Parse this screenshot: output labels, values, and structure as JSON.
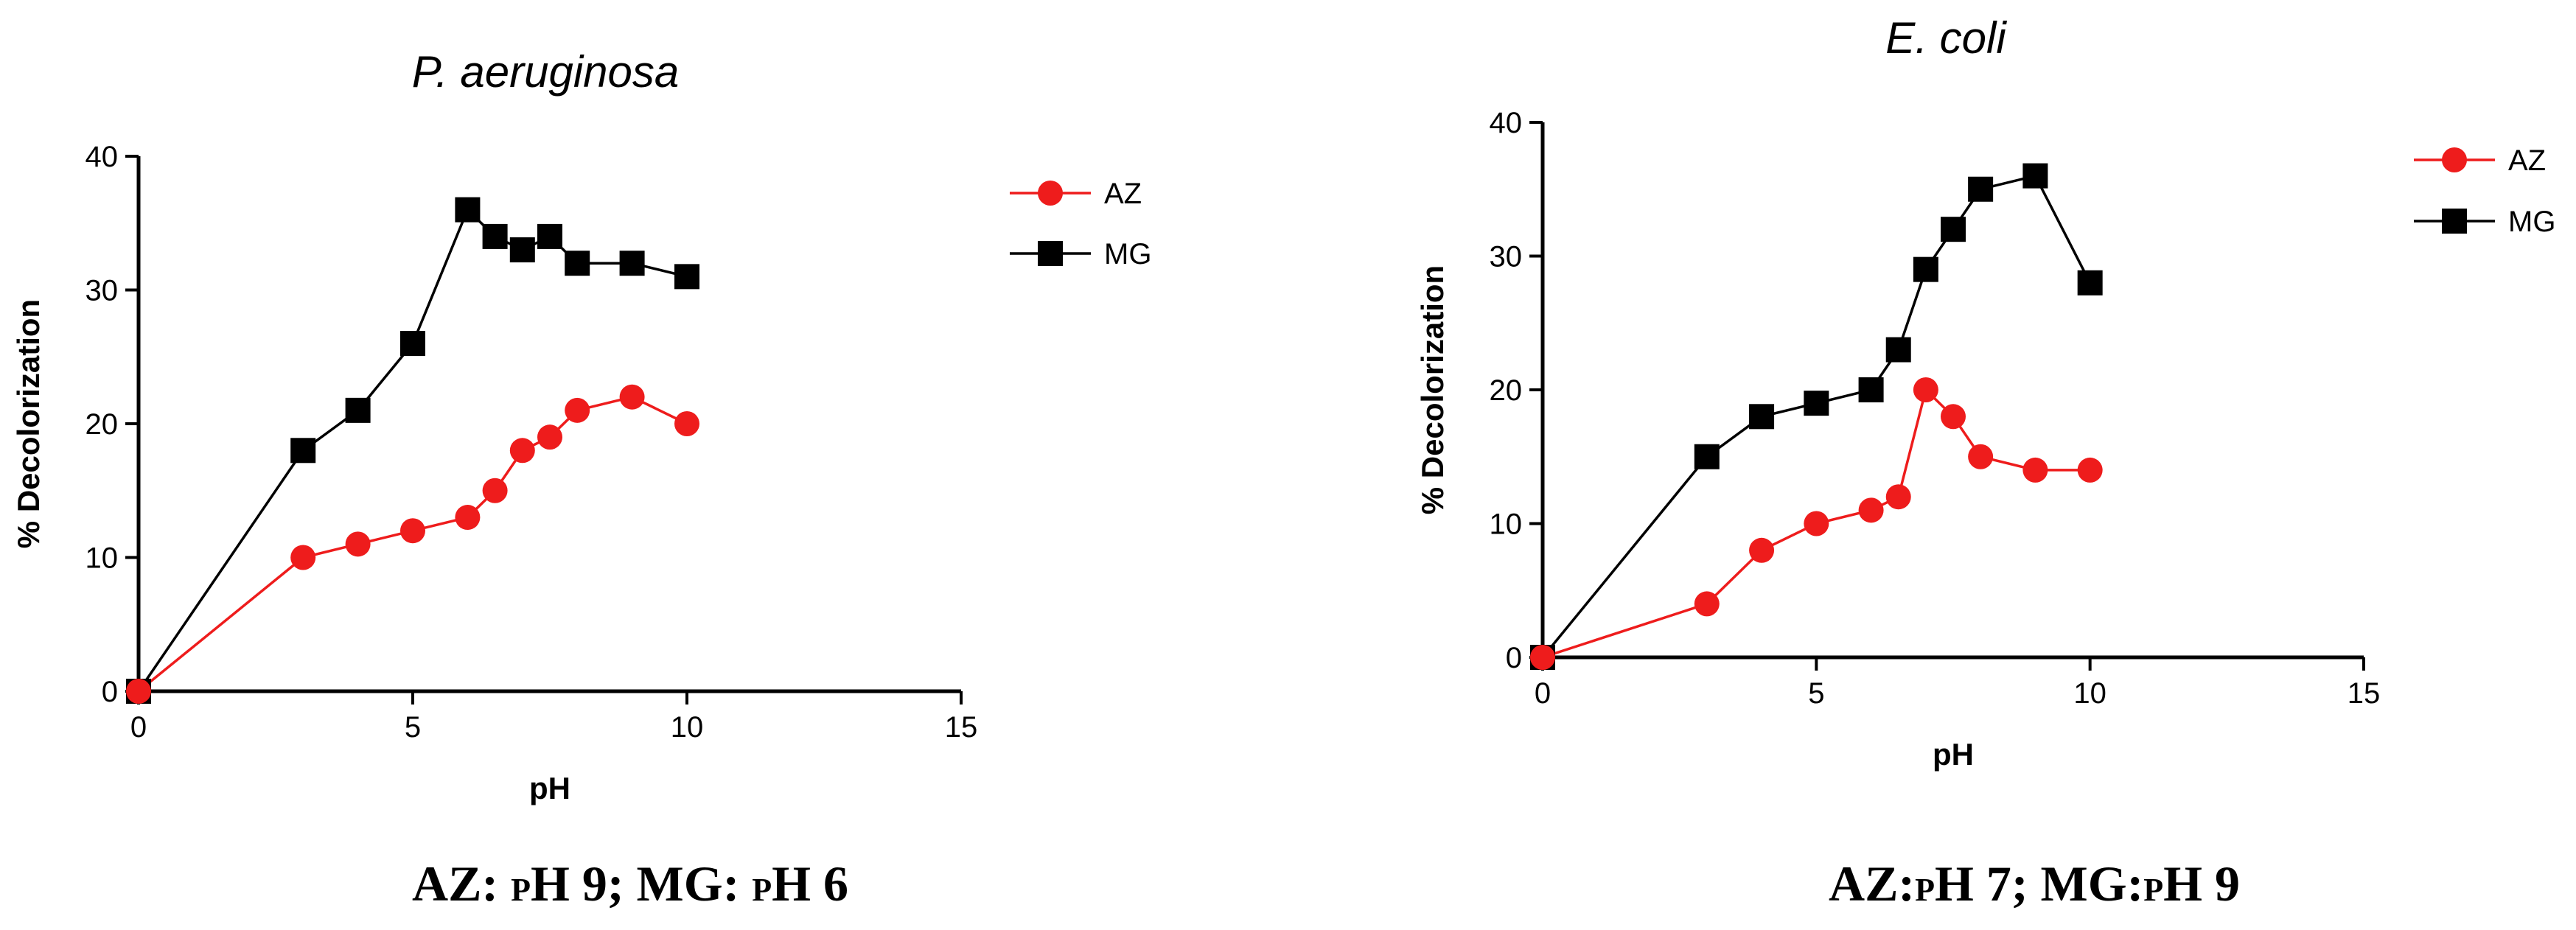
{
  "colors": {
    "az": "#ee1c1c",
    "mg": "#000000",
    "axis": "#000000",
    "background": "#ffffff"
  },
  "chart_data": [
    {
      "type": "line",
      "title": "P. aeruginosa",
      "xlabel": "pH",
      "ylabel": "% Decolorization",
      "xlim": [
        0,
        15
      ],
      "ylim": [
        0,
        40
      ],
      "xticks": [
        0,
        5,
        10,
        15
      ],
      "yticks": [
        0,
        10,
        20,
        30,
        40
      ],
      "legend_position": "right",
      "series": [
        {
          "name": "AZ",
          "marker": "circle",
          "color": "#ee1c1c",
          "x": [
            0,
            3,
            4,
            5,
            6,
            6.5,
            7,
            7.5,
            8,
            9,
            10
          ],
          "values": [
            0,
            10,
            11,
            12,
            13,
            15,
            18,
            19,
            21,
            22,
            20
          ]
        },
        {
          "name": "MG",
          "marker": "square",
          "color": "#000000",
          "x": [
            0,
            3,
            4,
            5,
            6,
            6.5,
            7,
            7.5,
            8,
            9,
            10
          ],
          "values": [
            0,
            18,
            21,
            26,
            36,
            34,
            33,
            34,
            32,
            32,
            31
          ]
        }
      ],
      "caption": {
        "parts": [
          "AZ: ",
          "P",
          "H 9; MG: ",
          "P",
          "H 6"
        ]
      }
    },
    {
      "type": "line",
      "title": "E. coli",
      "xlabel": "pH",
      "ylabel": "% Decolorization",
      "xlim": [
        0,
        15
      ],
      "ylim": [
        0,
        40
      ],
      "xticks": [
        0,
        5,
        10,
        15
      ],
      "yticks": [
        0,
        10,
        20,
        30,
        40
      ],
      "legend_position": "right",
      "series": [
        {
          "name": "AZ",
          "marker": "circle",
          "color": "#ee1c1c",
          "x": [
            0,
            3,
            4,
            5,
            6,
            6.5,
            7,
            7.5,
            8,
            9,
            10
          ],
          "values": [
            0,
            4,
            8,
            10,
            11,
            12,
            20,
            18,
            15,
            14,
            14
          ]
        },
        {
          "name": "MG",
          "marker": "square",
          "color": "#000000",
          "x": [
            0,
            3,
            4,
            5,
            6,
            6.5,
            7,
            7.5,
            8,
            9,
            10
          ],
          "values": [
            0,
            15,
            18,
            19,
            20,
            23,
            29,
            32,
            35,
            36,
            28
          ]
        }
      ],
      "caption": {
        "parts": [
          "AZ:",
          "P",
          "H 7; MG:",
          "P",
          "H 9"
        ]
      }
    }
  ]
}
